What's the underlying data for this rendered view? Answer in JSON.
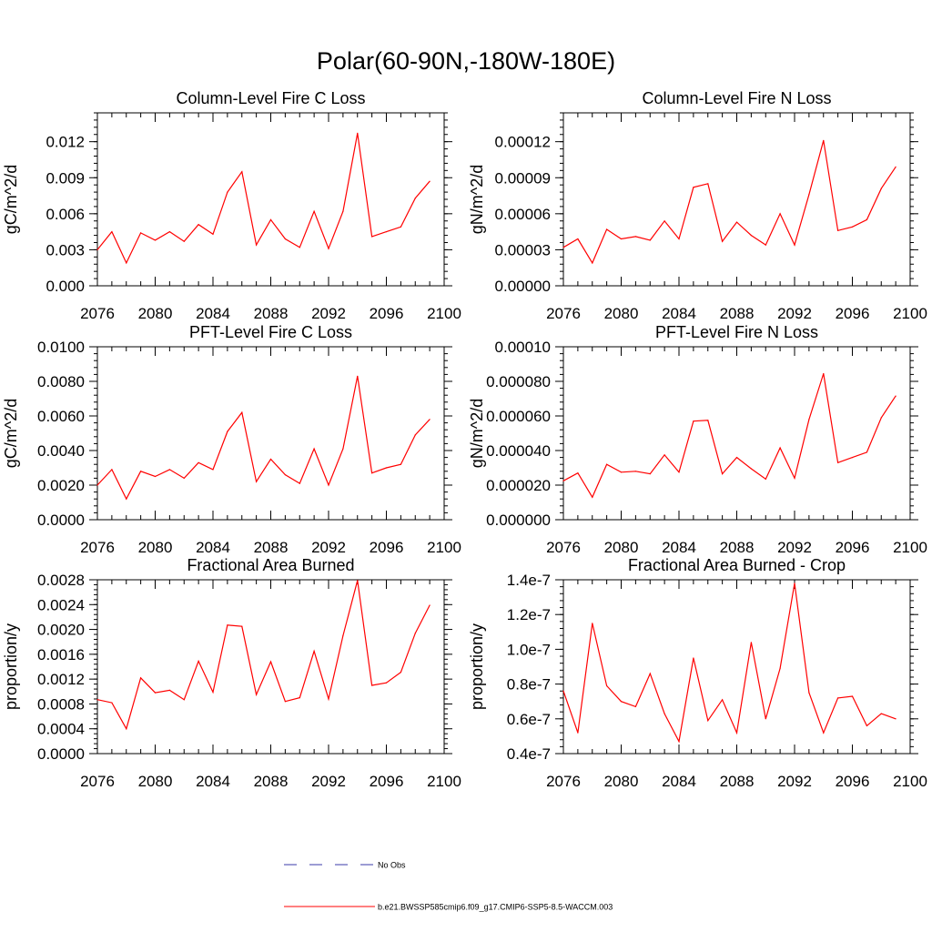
{
  "title": "Polar(60-90N,-180W-180E)",
  "legend": {
    "obs_label": "No Obs",
    "obs_color": "#3a3aa8",
    "model_label": "b.e21.BWSSP585cmip6.f09_g17.CMIP6-SSP5-8.5-WACCM.003",
    "model_color": "#ff0000"
  },
  "chart_data": [
    {
      "type": "line",
      "title": "Column-Level Fire C Loss",
      "ylabel": "gC/m^2/d",
      "xlim": [
        2076,
        2100
      ],
      "ylim": [
        0,
        0.0144
      ],
      "xticks": [
        2076,
        2080,
        2084,
        2088,
        2092,
        2096,
        2100
      ],
      "xtick_labels": [
        "2076",
        "2080",
        "2084",
        "2088",
        "2092",
        "2096",
        "2100"
      ],
      "yticks": [
        0,
        0.003,
        0.006,
        0.009,
        0.012
      ],
      "ytick_labels": [
        "0.000",
        "0.003",
        "0.006",
        "0.009",
        "0.012"
      ],
      "x": [
        2076,
        2077,
        2078,
        2079,
        2080,
        2081,
        2082,
        2083,
        2084,
        2085,
        2086,
        2087,
        2088,
        2089,
        2090,
        2091,
        2092,
        2093,
        2094,
        2095,
        2096,
        2097,
        2098,
        2099
      ],
      "values": [
        0.003,
        0.0045,
        0.0019,
        0.0044,
        0.0038,
        0.0045,
        0.0037,
        0.0051,
        0.0043,
        0.0078,
        0.0095,
        0.0034,
        0.0055,
        0.0039,
        0.0032,
        0.0062,
        0.0031,
        0.0062,
        0.0127,
        0.0041,
        0.0045,
        0.0049,
        0.0073,
        0.0087
      ]
    },
    {
      "type": "line",
      "title": "Column-Level Fire N Loss",
      "ylabel": "gN/m^2/d",
      "xlim": [
        2076,
        2100
      ],
      "ylim": [
        0,
        0.000144
      ],
      "xticks": [
        2076,
        2080,
        2084,
        2088,
        2092,
        2096,
        2100
      ],
      "xtick_labels": [
        "2076",
        "2080",
        "2084",
        "2088",
        "2092",
        "2096",
        "2100"
      ],
      "yticks": [
        0,
        3e-05,
        6e-05,
        9e-05,
        0.00012
      ],
      "ytick_labels": [
        "0.00000",
        "0.00003",
        "0.00006",
        "0.00009",
        "0.00012"
      ],
      "x": [
        2076,
        2077,
        2078,
        2079,
        2080,
        2081,
        2082,
        2083,
        2084,
        2085,
        2086,
        2087,
        2088,
        2089,
        2090,
        2091,
        2092,
        2093,
        2094,
        2095,
        2096,
        2097,
        2098,
        2099
      ],
      "values": [
        3.2e-05,
        3.9e-05,
        1.9e-05,
        4.7e-05,
        3.9e-05,
        4.1e-05,
        3.8e-05,
        5.4e-05,
        3.9e-05,
        8.2e-05,
        8.5e-05,
        3.7e-05,
        5.3e-05,
        4.2e-05,
        3.4e-05,
        6e-05,
        3.4e-05,
        7.6e-05,
        0.000121,
        4.6e-05,
        4.9e-05,
        5.5e-05,
        8.1e-05,
        9.9e-05
      ]
    },
    {
      "type": "line",
      "title": "PFT-Level Fire C Loss",
      "ylabel": "gC/m^2/d",
      "xlim": [
        2076,
        2100
      ],
      "ylim": [
        0,
        0.01
      ],
      "xticks": [
        2076,
        2080,
        2084,
        2088,
        2092,
        2096,
        2100
      ],
      "xtick_labels": [
        "2076",
        "2080",
        "2084",
        "2088",
        "2092",
        "2096",
        "2100"
      ],
      "yticks": [
        0,
        0.002,
        0.004,
        0.006,
        0.008,
        0.01
      ],
      "ytick_labels": [
        "0.0000",
        "0.0020",
        "0.0040",
        "0.0060",
        "0.0080",
        "0.0100"
      ],
      "x": [
        2076,
        2077,
        2078,
        2079,
        2080,
        2081,
        2082,
        2083,
        2084,
        2085,
        2086,
        2087,
        2088,
        2089,
        2090,
        2091,
        2092,
        2093,
        2094,
        2095,
        2096,
        2097,
        2098,
        2099
      ],
      "values": [
        0.002,
        0.0029,
        0.0012,
        0.0028,
        0.0025,
        0.0029,
        0.0024,
        0.0033,
        0.0029,
        0.0051,
        0.0062,
        0.0022,
        0.0035,
        0.0026,
        0.0021,
        0.0041,
        0.002,
        0.0041,
        0.0083,
        0.0027,
        0.003,
        0.0032,
        0.0049,
        0.0058
      ]
    },
    {
      "type": "line",
      "title": "PFT-Level Fire N Loss",
      "ylabel": "gN/m^2/d",
      "xlim": [
        2076,
        2100
      ],
      "ylim": [
        0,
        0.0001
      ],
      "xticks": [
        2076,
        2080,
        2084,
        2088,
        2092,
        2096,
        2100
      ],
      "xtick_labels": [
        "2076",
        "2080",
        "2084",
        "2088",
        "2092",
        "2096",
        "2100"
      ],
      "yticks": [
        0,
        2e-05,
        4e-05,
        6e-05,
        8e-05,
        0.0001
      ],
      "ytick_labels": [
        "0.000000",
        "0.000020",
        "0.000040",
        "0.000060",
        "0.000080",
        "0.00010"
      ],
      "x": [
        2076,
        2077,
        2078,
        2079,
        2080,
        2081,
        2082,
        2083,
        2084,
        2085,
        2086,
        2087,
        2088,
        2089,
        2090,
        2091,
        2092,
        2093,
        2094,
        2095,
        2096,
        2097,
        2098,
        2099
      ],
      "values": [
        2.25e-05,
        2.7e-05,
        1.3e-05,
        3.2e-05,
        2.75e-05,
        2.8e-05,
        2.65e-05,
        3.75e-05,
        2.75e-05,
        5.7e-05,
        5.75e-05,
        2.65e-05,
        3.6e-05,
        2.95e-05,
        2.35e-05,
        4.15e-05,
        2.4e-05,
        5.8e-05,
        8.45e-05,
        3.3e-05,
        3.6e-05,
        3.9e-05,
        5.9e-05,
        7.15e-05
      ]
    },
    {
      "type": "line",
      "title": "Fractional Area Burned",
      "ylabel": "proportion/y",
      "xlim": [
        2076,
        2100
      ],
      "ylim": [
        0,
        0.0028
      ],
      "xticks": [
        2076,
        2080,
        2084,
        2088,
        2092,
        2096,
        2100
      ],
      "xtick_labels": [
        "2076",
        "2080",
        "2084",
        "2088",
        "2092",
        "2096",
        "2100"
      ],
      "yticks": [
        0,
        0.0004,
        0.0008,
        0.0012,
        0.0016,
        0.002,
        0.0024,
        0.0028
      ],
      "ytick_labels": [
        "0.0000",
        "0.0004",
        "0.0008",
        "0.0012",
        "0.0016",
        "0.0020",
        "0.0024",
        "0.0028"
      ],
      "x": [
        2076,
        2077,
        2078,
        2079,
        2080,
        2081,
        2082,
        2083,
        2084,
        2085,
        2086,
        2087,
        2088,
        2089,
        2090,
        2091,
        2092,
        2093,
        2094,
        2095,
        2096,
        2097,
        2098,
        2099
      ],
      "values": [
        0.00087,
        0.00082,
        0.0004,
        0.00122,
        0.00098,
        0.00102,
        0.00087,
        0.00149,
        0.00099,
        0.00207,
        0.00205,
        0.00095,
        0.00148,
        0.00084,
        0.0009,
        0.00165,
        0.00088,
        0.0019,
        0.00279,
        0.0011,
        0.00114,
        0.00131,
        0.00194,
        0.00239
      ]
    },
    {
      "type": "line",
      "title": "Fractional Area Burned - Crop",
      "ylabel": "proportion/y",
      "xlim": [
        2076,
        2100
      ],
      "ylim": [
        4e-08,
        1.4e-07
      ],
      "xticks": [
        2076,
        2080,
        2084,
        2088,
        2092,
        2096,
        2100
      ],
      "xtick_labels": [
        "2076",
        "2080",
        "2084",
        "2088",
        "2092",
        "2096",
        "2100"
      ],
      "yticks": [
        4e-08,
        6e-08,
        8e-08,
        1e-07,
        1.2e-07,
        1.4e-07
      ],
      "ytick_labels": [
        "0.4e-7",
        "0.6e-7",
        "0.8e-7",
        "1.0e-7",
        "1.2e-7",
        "1.4e-7"
      ],
      "x": [
        2076,
        2077,
        2078,
        2079,
        2080,
        2081,
        2082,
        2083,
        2084,
        2085,
        2086,
        2087,
        2088,
        2089,
        2090,
        2091,
        2092,
        2093,
        2094,
        2095,
        2096,
        2097,
        2098,
        2099
      ],
      "values": [
        7.6e-08,
        5.2e-08,
        1.15e-07,
        7.9e-08,
        7e-08,
        6.7e-08,
        8.6e-08,
        6.3e-08,
        4.7e-08,
        9.5e-08,
        5.9e-08,
        7.1e-08,
        5.2e-08,
        1.04e-07,
        6e-08,
        8.9e-08,
        1.38e-07,
        7.5e-08,
        5.2e-08,
        7.2e-08,
        7.3e-08,
        5.6e-08,
        6.3e-08,
        6e-08
      ]
    }
  ]
}
